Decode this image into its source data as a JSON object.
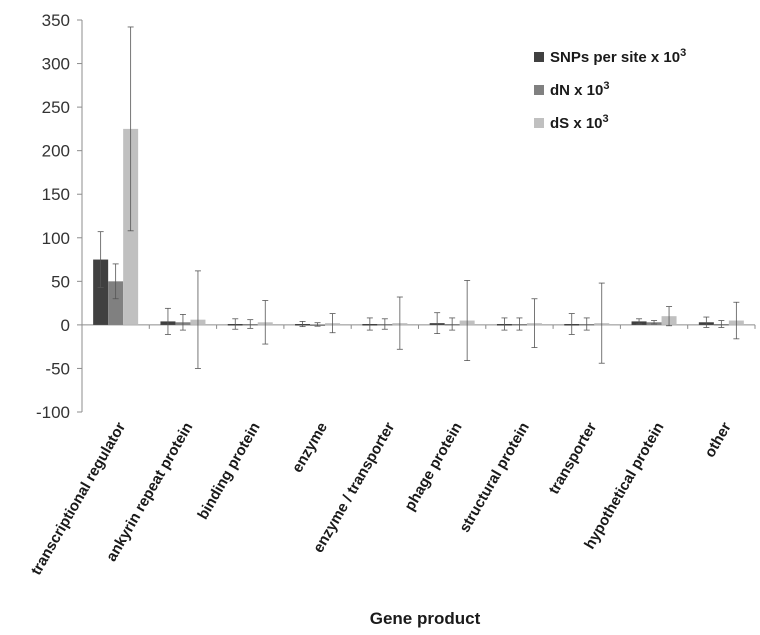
{
  "chart_data": {
    "type": "bar",
    "title": "",
    "xlabel": "Gene product",
    "ylabel": "",
    "ylim": [
      -100,
      350
    ],
    "yticks": [
      350,
      300,
      250,
      200,
      150,
      100,
      50,
      0,
      -50,
      -100
    ],
    "grid": false,
    "legend_position": "top-right",
    "categories": [
      "transcriptional regulator",
      "ankyrin repeat protein",
      "binding protein",
      "enzyme",
      "enzyme / transporter",
      "phage protein",
      "structural protein",
      "transporter",
      "hypothetical protein",
      "other"
    ],
    "series": [
      {
        "name": "SNPs per site x 10",
        "name_sup": "3",
        "color": "#404040",
        "values": [
          75,
          4,
          1,
          1,
          1,
          2,
          1,
          1,
          4,
          3
        ],
        "error": [
          32,
          15,
          6,
          3,
          7,
          12,
          7,
          12,
          3,
          6
        ]
      },
      {
        "name": "dN x 10",
        "name_sup": "3",
        "color": "#808080",
        "values": [
          50,
          3,
          1,
          0.5,
          1,
          1,
          1,
          1,
          3,
          1
        ],
        "error": [
          20,
          9,
          5,
          2,
          6,
          7,
          7,
          7,
          2,
          4
        ]
      },
      {
        "name": "dS x 10",
        "name_sup": "3",
        "color": "#c0c0c0",
        "values": [
          225,
          6,
          3,
          2,
          2,
          5,
          2,
          2,
          10,
          5
        ],
        "error": [
          117,
          56,
          25,
          11,
          30,
          46,
          28,
          46,
          11,
          21
        ]
      }
    ]
  }
}
